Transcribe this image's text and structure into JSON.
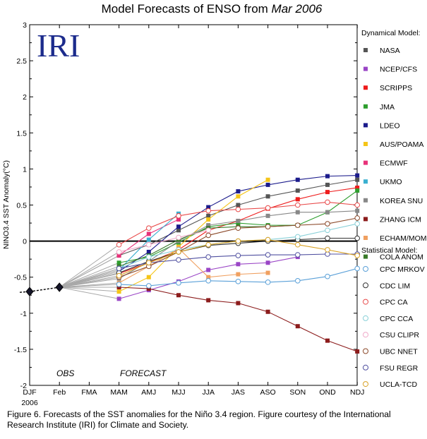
{
  "chart_data": {
    "type": "line",
    "title": "Model Forecasts of ENSO from ",
    "title_month": "Mar 2006",
    "logo": "IRI",
    "ylabel": "NINO3.4 SST Anomaly(°C)",
    "ylim": [
      -2,
      3
    ],
    "yticks": [
      "3",
      "2.5",
      "2",
      "1.5",
      "1",
      "0.5",
      "0",
      "-0.5",
      "-1",
      "-1.5",
      "-2"
    ],
    "categories": [
      "DJF",
      "Feb",
      "FMA",
      "MAM",
      "AMJ",
      "MJJ",
      "JJA",
      "JAS",
      "ASO",
      "SON",
      "OND",
      "NDJ"
    ],
    "xtick_year": "2006",
    "annotations": {
      "obs": "OBS",
      "forecast": "FORECAST"
    },
    "observed": {
      "x": [
        "DJF",
        "Feb"
      ],
      "values": [
        -0.7,
        -0.64
      ]
    },
    "legend": {
      "dynamical_title": "Dynamical Model:",
      "statistical_title": "Statistical Model:"
    },
    "series": [
      {
        "name": "NASA",
        "group": "dynamical",
        "color": "#555555",
        "values": [
          null,
          null,
          null,
          -0.2,
          -0.05,
          0.15,
          0.35,
          0.5,
          0.62,
          0.7,
          0.78,
          0.85
        ]
      },
      {
        "name": "NCEP/CFS",
        "group": "dynamical",
        "color": "#9a45c6",
        "values": [
          null,
          null,
          null,
          -0.8,
          -0.68,
          -0.56,
          -0.4,
          -0.32,
          -0.3,
          -0.22,
          null,
          null
        ]
      },
      {
        "name": "SCRIPPS",
        "group": "dynamical",
        "color": "#ee1c1c",
        "values": [
          null,
          null,
          null,
          -0.45,
          -0.3,
          -0.12,
          0.15,
          0.28,
          0.45,
          0.58,
          0.68,
          0.74
        ]
      },
      {
        "name": "JMA",
        "group": "dynamical",
        "color": "#2e9e2e",
        "values": [
          null,
          null,
          null,
          -0.3,
          -0.22,
          -0.02,
          0.2,
          0.25,
          0.22,
          0.22,
          0.4,
          0.7
        ]
      },
      {
        "name": "LDEO",
        "group": "dynamical",
        "color": "#1c1c8c",
        "values": [
          null,
          null,
          null,
          -0.42,
          -0.15,
          0.2,
          0.47,
          0.69,
          0.78,
          0.85,
          0.9,
          0.91
        ]
      },
      {
        "name": "AUS/POAMA",
        "group": "dynamical",
        "color": "#f5c518",
        "values": [
          null,
          null,
          null,
          -0.7,
          -0.5,
          -0.08,
          0.3,
          0.62,
          0.85,
          null,
          null,
          null
        ]
      },
      {
        "name": "ECMWF",
        "group": "dynamical",
        "color": "#e8327a",
        "values": [
          null,
          null,
          null,
          -0.2,
          0.1,
          0.3,
          null,
          null,
          null,
          null,
          null,
          null
        ]
      },
      {
        "name": "UKMO",
        "group": "dynamical",
        "color": "#3ab0d0",
        "values": [
          null,
          null,
          null,
          -0.4,
          0.02,
          0.38,
          null,
          null,
          null,
          null,
          null,
          null
        ]
      },
      {
        "name": "KOREA SNU",
        "group": "dynamical",
        "color": "#888888",
        "values": [
          null,
          null,
          null,
          -0.52,
          -0.28,
          0.0,
          0.22,
          0.28,
          0.35,
          0.4,
          0.4,
          0.42
        ]
      },
      {
        "name": "ZHANG ICM",
        "group": "dynamical",
        "color": "#8c1c1c",
        "values": [
          null,
          null,
          null,
          -0.64,
          -0.66,
          -0.75,
          -0.82,
          -0.86,
          -0.98,
          -1.18,
          -1.38,
          -1.53
        ]
      },
      {
        "name": "ECHAM/MOM",
        "group": "dynamical",
        "color": "#f0a060",
        "values": [
          null,
          null,
          null,
          -0.58,
          -0.35,
          -0.1,
          -0.5,
          -0.46,
          -0.44,
          null,
          null,
          null
        ]
      },
      {
        "name": "COLA ANOM",
        "group": "dynamical",
        "color": "#3a7a2a",
        "values": [
          null,
          null,
          null,
          -0.35,
          -0.2,
          0.02,
          0.18,
          0.2,
          0.2,
          0.22,
          null,
          null
        ]
      },
      {
        "name": "CPC MRKOV",
        "group": "statistical",
        "color": "#5aa0d8",
        "values": [
          null,
          null,
          null,
          -0.6,
          -0.62,
          -0.58,
          -0.55,
          -0.56,
          -0.57,
          -0.55,
          -0.49,
          -0.38
        ]
      },
      {
        "name": "CDC LIM",
        "group": "statistical",
        "color": "#333333",
        "values": [
          null,
          null,
          null,
          -0.44,
          -0.28,
          -0.15,
          -0.06,
          -0.03,
          0.0,
          0.02,
          0.04,
          0.04
        ]
      },
      {
        "name": "CPC CA",
        "group": "statistical",
        "color": "#e84848",
        "values": [
          null,
          null,
          null,
          -0.05,
          0.18,
          0.35,
          0.42,
          0.44,
          0.46,
          0.5,
          0.54,
          0.5
        ]
      },
      {
        "name": "CPC CCA",
        "group": "statistical",
        "color": "#88d0d8",
        "values": [
          null,
          null,
          null,
          -0.38,
          -0.22,
          -0.12,
          -0.05,
          0.0,
          0.02,
          0.06,
          0.15,
          0.24
        ]
      },
      {
        "name": "CSU CLIPR",
        "group": "statistical",
        "color": "#f0a8c8",
        "values": [
          null,
          null,
          null,
          -0.15,
          -0.05,
          0.05,
          0.15,
          null,
          null,
          null,
          null,
          null
        ]
      },
      {
        "name": "UBC NNET",
        "group": "statistical",
        "color": "#8c4a2a",
        "values": [
          null,
          null,
          null,
          -0.5,
          -0.35,
          -0.15,
          0.08,
          0.18,
          0.2,
          0.22,
          0.24,
          0.32
        ]
      },
      {
        "name": "FSU REGR",
        "group": "statistical",
        "color": "#5050a0",
        "values": [
          null,
          null,
          null,
          -0.38,
          -0.3,
          -0.26,
          -0.22,
          -0.2,
          -0.19,
          -0.19,
          -0.18,
          -0.18
        ]
      },
      {
        "name": "UCLA-TCD",
        "group": "statistical",
        "color": "#d8a020",
        "values": [
          null,
          null,
          null,
          -0.48,
          -0.3,
          -0.15,
          -0.05,
          0.0,
          0.02,
          -0.05,
          -0.12,
          -0.2
        ]
      }
    ]
  },
  "caption": "Figure 6. Forecasts of the SST anomalies for the Niño 3.4 region. Figure courtesy of the International Research Institute (IRI) for Climate and Society."
}
